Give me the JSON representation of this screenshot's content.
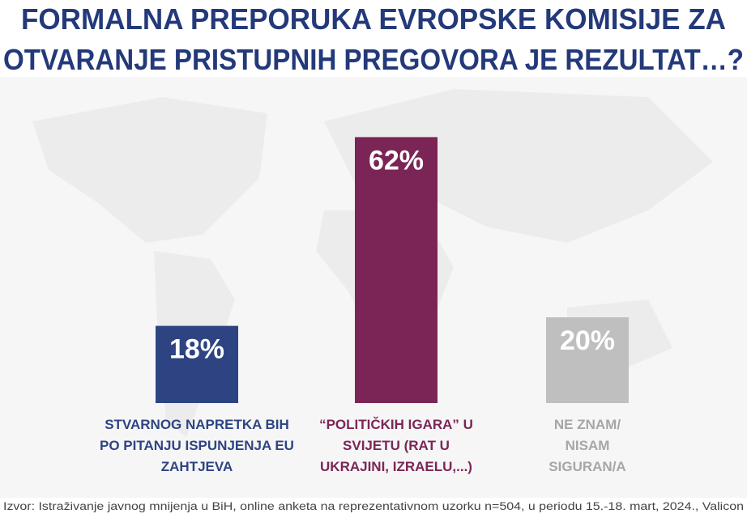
{
  "chart_data": {
    "type": "bar",
    "title": [
      "FORMALNA PREPORUKA EVROPSKE KOMISIJE ZA",
      "OTVARANJE PRISTUPNIH PREGOVORA JE REZULTAT…?"
    ],
    "categories": [
      "STVARNOG NAPRETKA BIH PO PITANJU ISPUNJENJA EU ZAHTJEVA",
      "“POLITIČKIH IGARA” U SVIJETU (RAT U UKRAJINI, IZRAELU,...)",
      "NE ZNAM/ NISAM SIGURAN/A"
    ],
    "values": [
      18,
      62,
      20
    ],
    "value_labels": [
      "18%",
      "62%",
      "20%"
    ],
    "colors": [
      "#2e4482",
      "#7b2556",
      "#bfbfbf"
    ],
    "label_colors": [
      "#2e4482",
      "#7b2556",
      "#a6a6a6"
    ],
    "source": "Izvor: Istraživanje javnog mnijenja u BiH, online anketa na reprezentativnom uzorku n=504, u periodu 15.-18. mart, 2024., Valicon"
  }
}
